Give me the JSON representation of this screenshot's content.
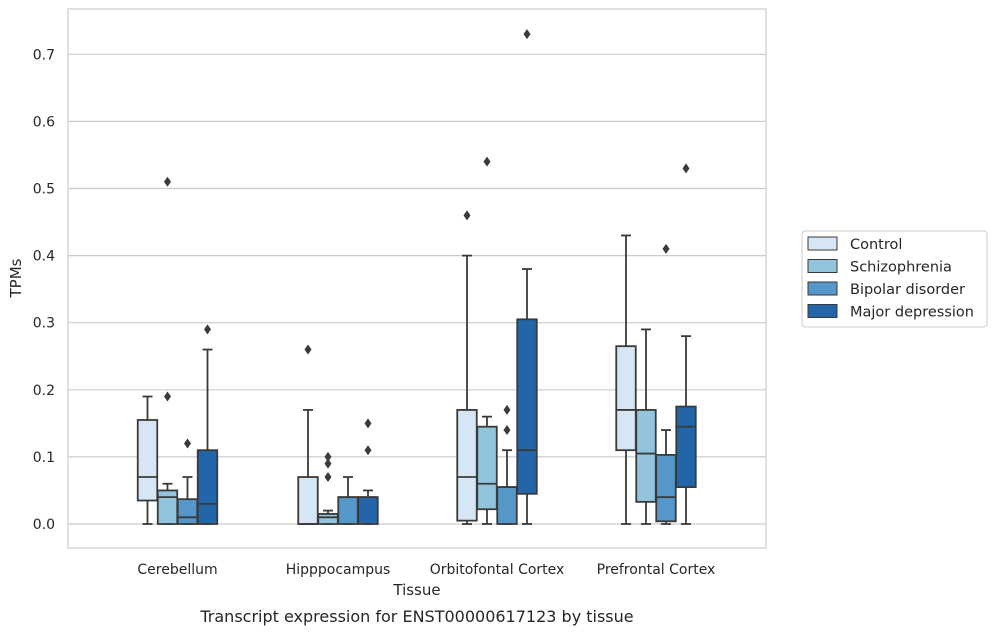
{
  "caption": "Transcript expression for ENST00000617123 by tissue",
  "chart_data": {
    "type": "box",
    "title": "",
    "xlabel": "Tissue",
    "ylabel": "TPMs",
    "ylim": [
      -0.035,
      0.77
    ],
    "yticks": [
      0.0,
      0.1,
      0.2,
      0.3,
      0.4,
      0.5,
      0.6,
      0.7
    ],
    "ytick_labels": [
      "0.0",
      "0.1",
      "0.2",
      "0.3",
      "0.4",
      "0.5",
      "0.6",
      "0.7"
    ],
    "grid": "horizontal",
    "legend_position": "right",
    "categories": [
      "Cerebellum",
      "Hipppocampus",
      "Orbitofontal Cortex",
      "Prefrontal Cortex"
    ],
    "series": [
      {
        "name": "Control",
        "color": "#d6e6f4",
        "boxes": [
          {
            "whisker_low": 0.0,
            "q1": 0.035,
            "median": 0.07,
            "q3": 0.155,
            "whisker_high": 0.19,
            "outliers": []
          },
          {
            "whisker_low": 0.0,
            "q1": 0.0,
            "median": 0.0,
            "q3": 0.07,
            "whisker_high": 0.17,
            "outliers": [
              0.26
            ]
          },
          {
            "whisker_low": 0.0,
            "q1": 0.005,
            "median": 0.07,
            "q3": 0.17,
            "whisker_high": 0.4,
            "outliers": [
              0.46
            ]
          },
          {
            "whisker_low": 0.0,
            "q1": 0.11,
            "median": 0.17,
            "q3": 0.265,
            "whisker_high": 0.43,
            "outliers": []
          }
        ]
      },
      {
        "name": "Schizophrenia",
        "color": "#92c4de",
        "boxes": [
          {
            "whisker_low": 0.0,
            "q1": 0.0,
            "median": 0.04,
            "q3": 0.05,
            "whisker_high": 0.06,
            "outliers": [
              0.19,
              0.51
            ]
          },
          {
            "whisker_low": 0.0,
            "q1": 0.0,
            "median": 0.01,
            "q3": 0.015,
            "whisker_high": 0.02,
            "outliers": [
              0.07,
              0.09,
              0.1
            ]
          },
          {
            "whisker_low": 0.0,
            "q1": 0.022,
            "median": 0.06,
            "q3": 0.145,
            "whisker_high": 0.16,
            "outliers": [
              0.54
            ]
          },
          {
            "whisker_low": 0.0,
            "q1": 0.033,
            "median": 0.105,
            "q3": 0.17,
            "whisker_high": 0.29,
            "outliers": []
          }
        ]
      },
      {
        "name": "Bipolar disorder",
        "color": "#5597c8",
        "boxes": [
          {
            "whisker_low": 0.0,
            "q1": 0.0,
            "median": 0.01,
            "q3": 0.037,
            "whisker_high": 0.07,
            "outliers": [
              0.12
            ]
          },
          {
            "whisker_low": 0.0,
            "q1": 0.0,
            "median": 0.04,
            "q3": 0.04,
            "whisker_high": 0.07,
            "outliers": []
          },
          {
            "whisker_low": 0.0,
            "q1": 0.0,
            "median": 0.055,
            "q3": 0.055,
            "whisker_high": 0.11,
            "outliers": [
              0.14,
              0.17
            ]
          },
          {
            "whisker_low": 0.0,
            "q1": 0.004,
            "median": 0.04,
            "q3": 0.103,
            "whisker_high": 0.14,
            "outliers": [
              0.41
            ]
          }
        ]
      },
      {
        "name": "Major depression",
        "color": "#2265a8",
        "boxes": [
          {
            "whisker_low": 0.0,
            "q1": 0.0,
            "median": 0.03,
            "q3": 0.11,
            "whisker_high": 0.26,
            "outliers": [
              0.29
            ]
          },
          {
            "whisker_low": 0.0,
            "q1": 0.0,
            "median": 0.04,
            "q3": 0.04,
            "whisker_high": 0.05,
            "outliers": [
              0.11,
              0.15
            ]
          },
          {
            "whisker_low": 0.0,
            "q1": 0.045,
            "median": 0.11,
            "q3": 0.305,
            "whisker_high": 0.38,
            "outliers": [
              0.73
            ]
          },
          {
            "whisker_low": 0.0,
            "q1": 0.055,
            "median": 0.145,
            "q3": 0.175,
            "whisker_high": 0.28,
            "outliers": [
              0.53
            ]
          }
        ]
      }
    ]
  }
}
